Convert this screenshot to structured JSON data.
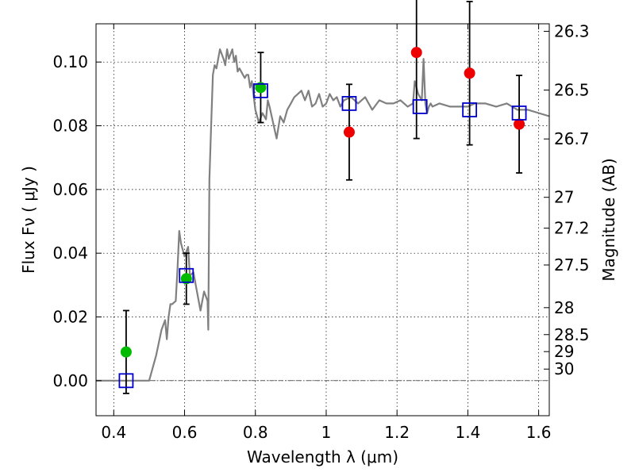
{
  "chart_data": {
    "type": "scatter",
    "title": "",
    "xlabel": "Wavelength  λ (μm)",
    "ylabel": "Flux  Fν  ( μJy )",
    "ylabel_right": "Magnitude (AB)",
    "xlim": [
      0.35,
      1.63
    ],
    "ylim": [
      -0.011,
      0.112
    ],
    "grid": true,
    "x_ticks": [
      {
        "value": 0.4,
        "label": "0.4"
      },
      {
        "value": 0.6,
        "label": "0.6"
      },
      {
        "value": 0.8,
        "label": "0.8"
      },
      {
        "value": 1.0,
        "label": "1"
      },
      {
        "value": 1.2,
        "label": "1.2"
      },
      {
        "value": 1.4,
        "label": "1.4"
      },
      {
        "value": 1.6,
        "label": "1.6"
      }
    ],
    "y_ticks": [
      {
        "value": 0.0,
        "label": "0.00"
      },
      {
        "value": 0.02,
        "label": "0.02"
      },
      {
        "value": 0.04,
        "label": "0.04"
      },
      {
        "value": 0.06,
        "label": "0.06"
      },
      {
        "value": 0.08,
        "label": "0.08"
      },
      {
        "value": 0.1,
        "label": "0.10"
      }
    ],
    "right_ticks": [
      {
        "mag": 26.3,
        "label": "26.3"
      },
      {
        "mag": 26.5,
        "label": "26.5"
      },
      {
        "mag": 26.7,
        "label": "26.7"
      },
      {
        "mag": 27.0,
        "label": "27"
      },
      {
        "mag": 27.2,
        "label": "27.2"
      },
      {
        "mag": 27.5,
        "label": "27.5"
      },
      {
        "mag": 28.0,
        "label": "28"
      },
      {
        "mag": 28.5,
        "label": "28.5"
      },
      {
        "mag": 29.0,
        "label": "29"
      },
      {
        "mag": 30.0,
        "label": "30"
      }
    ],
    "zero_line": 0.0,
    "colors": {
      "model": "#808080",
      "detections": "#00bb00",
      "upper_points": "#ee0000",
      "synthetic": "#0000cc",
      "errorbar": "#000000"
    },
    "model_spectrum": {
      "x": [
        0.35,
        0.5,
        0.52,
        0.535,
        0.545,
        0.55,
        0.555,
        0.56,
        0.565,
        0.575,
        0.58,
        0.585,
        0.59,
        0.6,
        0.61,
        0.615,
        0.625,
        0.635,
        0.645,
        0.655,
        0.665,
        0.667,
        0.67,
        0.675,
        0.68,
        0.685,
        0.69,
        0.7,
        0.71,
        0.715,
        0.72,
        0.725,
        0.735,
        0.74,
        0.745,
        0.75,
        0.755,
        0.765,
        0.77,
        0.775,
        0.78,
        0.785,
        0.79,
        0.8,
        0.81,
        0.82,
        0.83,
        0.835,
        0.84,
        0.85,
        0.86,
        0.87,
        0.88,
        0.89,
        0.9,
        0.91,
        0.92,
        0.93,
        0.94,
        0.95,
        0.96,
        0.97,
        0.98,
        0.99,
        1.0,
        1.01,
        1.02,
        1.03,
        1.04,
        1.05,
        1.07,
        1.09,
        1.11,
        1.13,
        1.15,
        1.17,
        1.19,
        1.21,
        1.23,
        1.245,
        1.25,
        1.26,
        1.27,
        1.275,
        1.28,
        1.285,
        1.29,
        1.295,
        1.3,
        1.32,
        1.35,
        1.38,
        1.4,
        1.42,
        1.45,
        1.48,
        1.51,
        1.54,
        1.57,
        1.6,
        1.63
      ],
      "y": [
        0.0,
        0.0,
        0.008,
        0.016,
        0.019,
        0.013,
        0.02,
        0.024,
        0.024,
        0.025,
        0.035,
        0.047,
        0.043,
        0.039,
        0.042,
        0.033,
        0.034,
        0.028,
        0.022,
        0.028,
        0.025,
        0.016,
        0.063,
        0.08,
        0.096,
        0.099,
        0.098,
        0.104,
        0.101,
        0.099,
        0.104,
        0.101,
        0.104,
        0.1,
        0.102,
        0.097,
        0.098,
        0.096,
        0.095,
        0.096,
        0.096,
        0.092,
        0.094,
        0.085,
        0.081,
        0.084,
        0.082,
        0.088,
        0.086,
        0.081,
        0.076,
        0.083,
        0.081,
        0.085,
        0.087,
        0.089,
        0.09,
        0.091,
        0.088,
        0.091,
        0.086,
        0.087,
        0.09,
        0.086,
        0.087,
        0.09,
        0.088,
        0.089,
        0.086,
        0.088,
        0.089,
        0.087,
        0.089,
        0.085,
        0.088,
        0.087,
        0.087,
        0.088,
        0.086,
        0.087,
        0.094,
        0.09,
        0.088,
        0.101,
        0.087,
        0.084,
        0.086,
        0.087,
        0.086,
        0.087,
        0.086,
        0.086,
        0.086,
        0.087,
        0.087,
        0.086,
        0.087,
        0.085,
        0.085,
        0.084,
        0.083
      ]
    },
    "series": [
      {
        "marker": "circle",
        "color": "#00bb00",
        "points": [
          {
            "x": 0.435,
            "y": 0.009,
            "err_lo": 0.013,
            "err_hi": 0.013
          },
          {
            "x": 0.605,
            "y": 0.032,
            "err_lo": 0.008,
            "err_hi": 0.008
          },
          {
            "x": 0.815,
            "y": 0.092,
            "err_lo": 0.011,
            "err_hi": 0.011
          }
        ]
      },
      {
        "marker": "circle",
        "color": "#ee0000",
        "points": [
          {
            "x": 1.065,
            "y": 0.078,
            "err_lo": 0.015,
            "err_hi": 0.015
          },
          {
            "x": 1.255,
            "y": 0.103,
            "err_lo": 0.027,
            "err_hi": 0.027
          },
          {
            "x": 1.405,
            "y": 0.0965,
            "err_lo": 0.0225,
            "err_hi": 0.0225
          },
          {
            "x": 1.545,
            "y": 0.0805,
            "err_lo": 0.0153,
            "err_hi": 0.0153
          }
        ]
      },
      {
        "marker": "open-square",
        "color": "#0000cc",
        "points": [
          {
            "x": 0.435,
            "y": 0.0
          },
          {
            "x": 0.605,
            "y": 0.033
          },
          {
            "x": 0.815,
            "y": 0.091
          },
          {
            "x": 1.065,
            "y": 0.087
          },
          {
            "x": 1.265,
            "y": 0.086
          },
          {
            "x": 1.405,
            "y": 0.085
          },
          {
            "x": 1.545,
            "y": 0.084
          }
        ]
      }
    ]
  }
}
